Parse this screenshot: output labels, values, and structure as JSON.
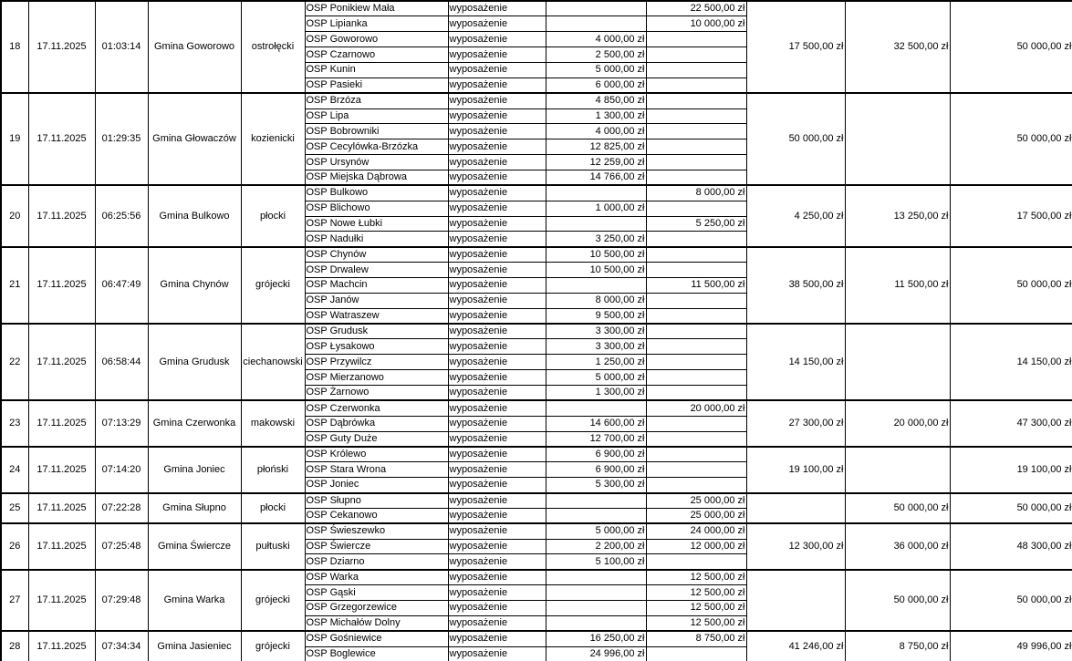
{
  "table": {
    "groups": [
      {
        "no": "18",
        "date": "17.11.2025",
        "time": "01:03:14",
        "gmina": "Gmina Goworowo",
        "powiat": "ostrołęcki",
        "sum1": "17 500,00 zł",
        "sum2": "32 500,00 zł",
        "total": "50 000,00 zł",
        "entries": [
          {
            "name": "OSP Ponikiew Mała",
            "type": "wyposażenie",
            "k1": "",
            "k2": "22 500,00 zł"
          },
          {
            "name": "OSP Lipianka",
            "type": "wyposażenie",
            "k1": "",
            "k2": "10 000,00 zł"
          },
          {
            "name": "OSP Goworowo",
            "type": "wyposażenie",
            "k1": "4 000,00 zł",
            "k2": ""
          },
          {
            "name": "OSP Czarnowo",
            "type": "wyposażenie",
            "k1": "2 500,00 zł",
            "k2": ""
          },
          {
            "name": "OSP Kunin",
            "type": "wyposażenie",
            "k1": "5 000,00 zł",
            "k2": ""
          },
          {
            "name": "OSP Pasieki",
            "type": "wyposażenie",
            "k1": "6 000,00 zł",
            "k2": ""
          }
        ]
      },
      {
        "no": "19",
        "date": "17.11.2025",
        "time": "01:29:35",
        "gmina": "Gmina Głowaczów",
        "powiat": "kozienicki",
        "sum1": "50 000,00 zł",
        "sum2": "",
        "total": "50 000,00 zł",
        "entries": [
          {
            "name": "OSP Brzóza",
            "type": "wyposażenie",
            "k1": "4 850,00 zł",
            "k2": ""
          },
          {
            "name": "OSP Lipa",
            "type": "wyposażenie",
            "k1": "1 300,00 zł",
            "k2": ""
          },
          {
            "name": "OSP Bobrowniki",
            "type": "wyposażenie",
            "k1": "4 000,00 zł",
            "k2": ""
          },
          {
            "name": "OSP Cecylówka-Brzózka",
            "type": "wyposażenie",
            "k1": "12 825,00 zł",
            "k2": ""
          },
          {
            "name": "OSP Ursynów",
            "type": "wyposażenie",
            "k1": "12 259,00 zł",
            "k2": ""
          },
          {
            "name": "OSP Miejska Dąbrowa",
            "type": "wyposażenie",
            "k1": "14 766,00 zł",
            "k2": ""
          }
        ]
      },
      {
        "no": "20",
        "date": "17.11.2025",
        "time": "06:25:56",
        "gmina": "Gmina Bulkowo",
        "powiat": "płocki",
        "sum1": "4 250,00 zł",
        "sum2": "13 250,00 zł",
        "total": "17 500,00 zł",
        "entries": [
          {
            "name": "OSP Bulkowo",
            "type": "wyposażenie",
            "k1": "",
            "k2": "8 000,00 zł"
          },
          {
            "name": "OSP Blichowo",
            "type": "wyposażenie",
            "k1": "1 000,00 zł",
            "k2": ""
          },
          {
            "name": "OSP Nowe Łubki",
            "type": "wyposażenie",
            "k1": "",
            "k2": "5 250,00 zł"
          },
          {
            "name": "OSP Nadułki",
            "type": "wyposażenie",
            "k1": "3 250,00 zł",
            "k2": ""
          }
        ]
      },
      {
        "no": "21",
        "date": "17.11.2025",
        "time": "06:47:49",
        "gmina": "Gmina Chynów",
        "powiat": "grójecki",
        "sum1": "38 500,00 zł",
        "sum2": "11 500,00 zł",
        "total": "50 000,00 zł",
        "entries": [
          {
            "name": "OSP Chynów",
            "type": "wyposażenie",
            "k1": "10 500,00 zł",
            "k2": ""
          },
          {
            "name": "OSP Drwalew",
            "type": "wyposażenie",
            "k1": "10 500,00 zł",
            "k2": ""
          },
          {
            "name": "OSP Machcin",
            "type": "wyposażenie",
            "k1": "",
            "k2": "11 500,00 zł"
          },
          {
            "name": "OSP Janów",
            "type": "wyposażenie",
            "k1": "8 000,00 zł",
            "k2": ""
          },
          {
            "name": "OSP Watraszew",
            "type": "wyposażenie",
            "k1": "9 500,00 zł",
            "k2": ""
          }
        ]
      },
      {
        "no": "22",
        "date": "17.11.2025",
        "time": "06:58:44",
        "gmina": "Gmina Grudusk",
        "powiat": "ciechanowski",
        "sum1": "14 150,00 zł",
        "sum2": "",
        "total": "14 150,00 zł",
        "entries": [
          {
            "name": "OSP Grudusk",
            "type": "wyposażenie",
            "k1": "3 300,00 zł",
            "k2": ""
          },
          {
            "name": "OSP Łysakowo",
            "type": "wyposażenie",
            "k1": "3 300,00 zł",
            "k2": ""
          },
          {
            "name": "OSP Przywilcz",
            "type": "wyposażenie",
            "k1": "1 250,00 zł",
            "k2": ""
          },
          {
            "name": "OSP Mierzanowo",
            "type": "wyposażenie",
            "k1": "5 000,00 zł",
            "k2": ""
          },
          {
            "name": "OSP Żarnowo",
            "type": "wyposażenie",
            "k1": "1 300,00 zł",
            "k2": ""
          }
        ]
      },
      {
        "no": "23",
        "date": "17.11.2025",
        "time": "07:13:29",
        "gmina": "Gmina Czerwonka",
        "powiat": "makowski",
        "sum1": "27 300,00 zł",
        "sum2": "20 000,00 zł",
        "total": "47 300,00 zł",
        "entries": [
          {
            "name": "OSP Czerwonka",
            "type": "wyposażenie",
            "k1": "",
            "k2": "20 000,00 zł"
          },
          {
            "name": "OSP Dąbrówka",
            "type": "wyposażenie",
            "k1": "14 600,00 zł",
            "k2": ""
          },
          {
            "name": "OSP Guty Duże",
            "type": "wyposażenie",
            "k1": "12 700,00 zł",
            "k2": ""
          }
        ]
      },
      {
        "no": "24",
        "date": "17.11.2025",
        "time": "07:14:20",
        "gmina": "Gmina Joniec",
        "powiat": "płoński",
        "sum1": "19 100,00 zł",
        "sum2": "",
        "total": "19 100,00 zł",
        "entries": [
          {
            "name": "OSP Królewo",
            "type": "wyposażenie",
            "k1": "6 900,00 zł",
            "k2": ""
          },
          {
            "name": "OSP Stara Wrona",
            "type": "wyposażenie",
            "k1": "6 900,00 zł",
            "k2": ""
          },
          {
            "name": "OSP Joniec",
            "type": "wyposażenie",
            "k1": "5 300,00 zł",
            "k2": ""
          }
        ]
      },
      {
        "no": "25",
        "date": "17.11.2025",
        "time": "07:22:28",
        "gmina": "Gmina Słupno",
        "powiat": "płocki",
        "sum1": "",
        "sum2": "50 000,00 zł",
        "total": "50 000,00 zł",
        "entries": [
          {
            "name": "OSP Słupno",
            "type": "wyposażenie",
            "k1": "",
            "k2": "25 000,00 zł"
          },
          {
            "name": "OSP Cekanowo",
            "type": "wyposażenie",
            "k1": "",
            "k2": "25 000,00 zł"
          }
        ]
      },
      {
        "no": "26",
        "date": "17.11.2025",
        "time": "07:25:48",
        "gmina": "Gmina Świercze",
        "powiat": "pułtuski",
        "sum1": "12 300,00 zł",
        "sum2": "36 000,00 zł",
        "total": "48 300,00 zł",
        "entries": [
          {
            "name": "OSP Świeszewko",
            "type": "wyposażenie",
            "k1": "5 000,00 zł",
            "k2": "24 000,00 zł"
          },
          {
            "name": "OSP Świercze",
            "type": "wyposażenie",
            "k1": "2 200,00 zł",
            "k2": "12 000,00 zł"
          },
          {
            "name": "OSP Dziarno",
            "type": "wyposażenie",
            "k1": "5 100,00 zł",
            "k2": ""
          }
        ]
      },
      {
        "no": "27",
        "date": "17.11.2025",
        "time": "07:29:48",
        "gmina": "Gmina Warka",
        "powiat": "grójecki",
        "sum1": "",
        "sum2": "50 000,00 zł",
        "total": "50 000,00 zł",
        "entries": [
          {
            "name": "OSP Warka",
            "type": "wyposażenie",
            "k1": "",
            "k2": "12 500,00 zł"
          },
          {
            "name": "OSP Gąski",
            "type": "wyposażenie",
            "k1": "",
            "k2": "12 500,00 zł"
          },
          {
            "name": "OSP Grzegorzewice",
            "type": "wyposażenie",
            "k1": "",
            "k2": "12 500,00 zł"
          },
          {
            "name": "OSP Michałów Dolny",
            "type": "wyposażenie",
            "k1": "",
            "k2": "12 500,00 zł"
          }
        ]
      },
      {
        "no": "28",
        "date": "17.11.2025",
        "time": "07:34:34",
        "gmina": "Gmina Jasieniec",
        "powiat": "grójecki",
        "sum1": "41 246,00 zł",
        "sum2": "8 750,00 zł",
        "total": "49 996,00 zł",
        "entries": [
          {
            "name": "OSP Gośniewice",
            "type": "wyposażenie",
            "k1": "16 250,00 zł",
            "k2": "8 750,00 zł"
          },
          {
            "name": "OSP Boglewice",
            "type": "wyposażenie",
            "k1": "24 996,00 zł",
            "k2": ""
          }
        ]
      }
    ]
  }
}
